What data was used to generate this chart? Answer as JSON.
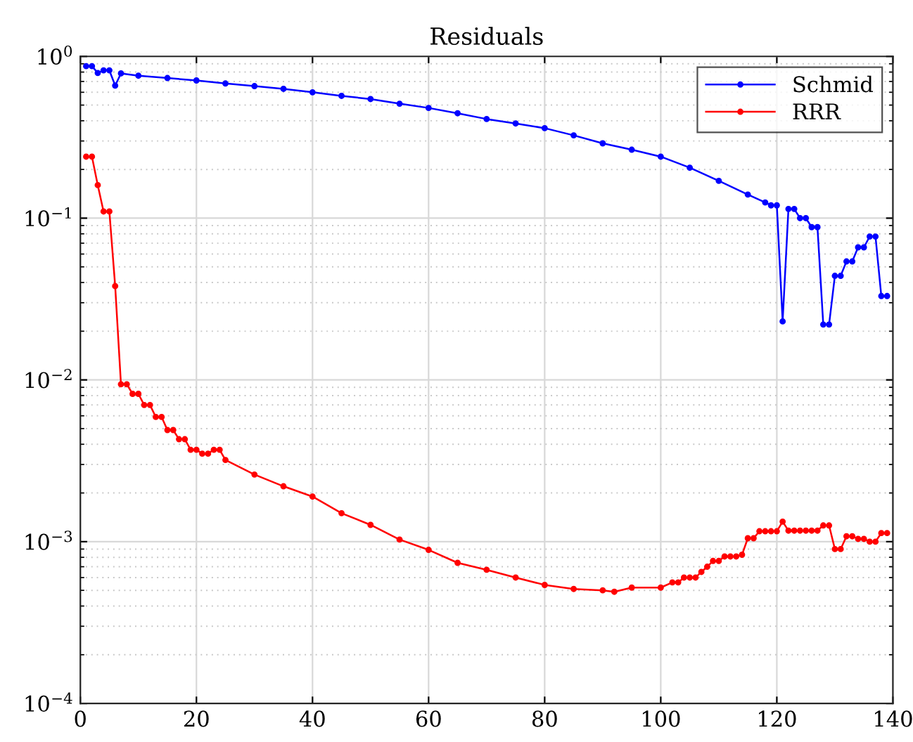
{
  "chart_data": {
    "type": "line",
    "title": "Residuals",
    "log": "y",
    "grid": true,
    "legend": "top right",
    "marker": "circle",
    "line_style": "solid",
    "xlim": [
      0,
      140
    ],
    "xticks": [
      0,
      20,
      40,
      60,
      80,
      100,
      120,
      140
    ],
    "ylim": [
      0.0001,
      1
    ],
    "yticks": [
      {
        "value": 0.0001,
        "label": "10$^{−4}$"
      },
      {
        "value": 0.001,
        "label": "10$^{−3}$"
      },
      {
        "value": 0.01,
        "label": "10$^{−2}$"
      },
      {
        "value": 0.1,
        "label": "10$^{−1}$"
      },
      {
        "value": 1,
        "label": "10$^{0}$"
      }
    ],
    "series": [
      {
        "name": "Schmid",
        "color": "#0000ff",
        "x": [
          1,
          2,
          3,
          4,
          5,
          6,
          7,
          10,
          15,
          20,
          25,
          30,
          35,
          40,
          45,
          50,
          55,
          60,
          65,
          70,
          75,
          80,
          85,
          90,
          95,
          100,
          105,
          110,
          115,
          118,
          119,
          120,
          121,
          122,
          123,
          124,
          125,
          126,
          127,
          128,
          129,
          130,
          131,
          132,
          133,
          134,
          135,
          136,
          137,
          138,
          139
        ],
        "values": [
          0.87,
          0.87,
          0.79,
          0.82,
          0.82,
          0.66,
          0.785,
          0.76,
          0.735,
          0.71,
          0.68,
          0.655,
          0.63,
          0.6,
          0.57,
          0.545,
          0.51,
          0.48,
          0.445,
          0.41,
          0.385,
          0.36,
          0.325,
          0.29,
          0.265,
          0.24,
          0.205,
          0.17,
          0.14,
          0.125,
          0.12,
          0.12,
          0.023,
          0.114,
          0.114,
          0.1,
          0.1,
          0.088,
          0.088,
          0.022,
          0.022,
          0.044,
          0.044,
          0.054,
          0.054,
          0.066,
          0.066,
          0.077,
          0.077,
          0.033,
          0.033
        ]
      },
      {
        "name": "RRR",
        "color": "#ff0000",
        "x": [
          1,
          2,
          3,
          4,
          5,
          6,
          7,
          8,
          9,
          10,
          11,
          12,
          13,
          14,
          15,
          16,
          17,
          18,
          19,
          20,
          21,
          22,
          23,
          24,
          25,
          30,
          35,
          40,
          45,
          50,
          55,
          60,
          65,
          70,
          75,
          80,
          85,
          90,
          92,
          95,
          100,
          102,
          103,
          104,
          105,
          106,
          107,
          108,
          109,
          110,
          111,
          112,
          113,
          114,
          115,
          116,
          117,
          118,
          119,
          120,
          121,
          122,
          123,
          124,
          125,
          126,
          127,
          128,
          129,
          130,
          131,
          132,
          133,
          134,
          135,
          136,
          137,
          138,
          139
        ],
        "values": [
          0.24,
          0.24,
          0.16,
          0.11,
          0.11,
          0.038,
          0.0094,
          0.0094,
          0.0082,
          0.0082,
          0.007,
          0.007,
          0.0059,
          0.0059,
          0.0049,
          0.0049,
          0.0043,
          0.0043,
          0.0037,
          0.0037,
          0.0035,
          0.0035,
          0.0037,
          0.0037,
          0.0032,
          0.0026,
          0.0022,
          0.0019,
          0.0015,
          0.00127,
          0.00103,
          0.00089,
          0.00074,
          0.00067,
          0.0006,
          0.00054,
          0.00051,
          0.0005,
          0.00049,
          0.00052,
          0.00052,
          0.00056,
          0.00056,
          0.0006,
          0.0006,
          0.0006,
          0.00065,
          0.0007,
          0.00076,
          0.00076,
          0.00081,
          0.00081,
          0.00081,
          0.00083,
          0.00105,
          0.00105,
          0.00116,
          0.00116,
          0.00116,
          0.00116,
          0.00133,
          0.00117,
          0.00117,
          0.00117,
          0.00117,
          0.00117,
          0.00117,
          0.00126,
          0.00126,
          0.0009,
          0.0009,
          0.00108,
          0.00108,
          0.00104,
          0.00104,
          0.001,
          0.001,
          0.00113,
          0.00113
        ]
      }
    ]
  }
}
